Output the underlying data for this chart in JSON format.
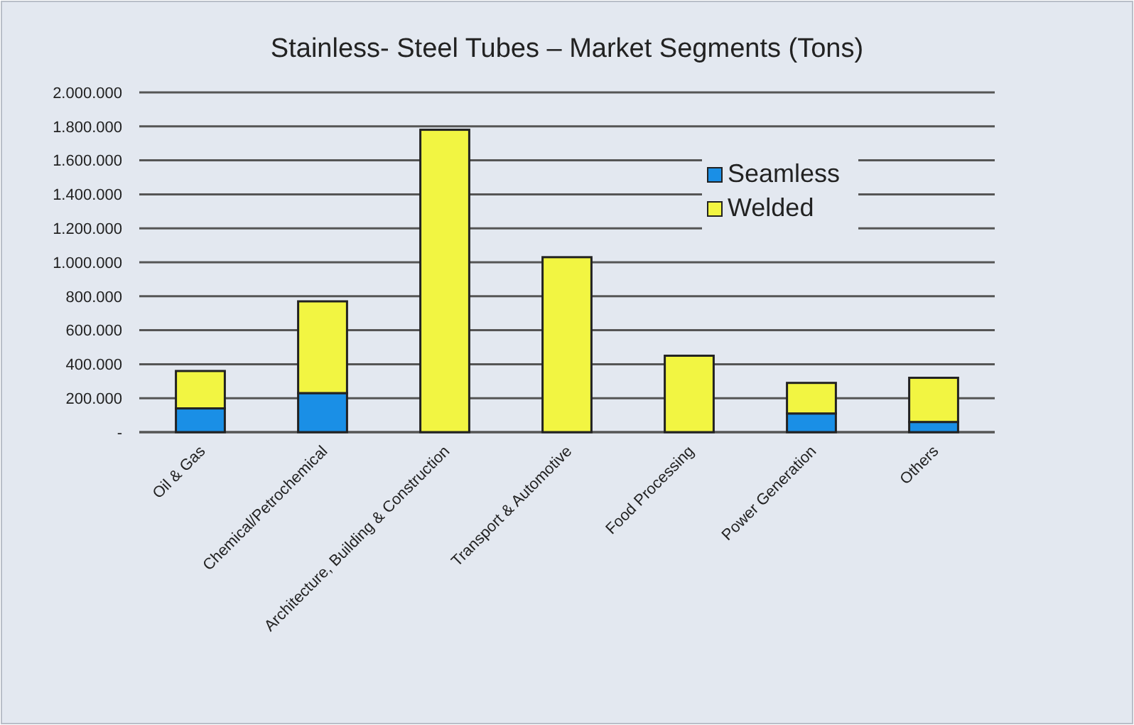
{
  "chart_data": {
    "type": "bar",
    "title": "Stainless- Steel Tubes – Market Segments (Tons)",
    "categories": [
      "Oil & Gas",
      "Chemical/Petrochemical",
      "Architecture, Building & Construction",
      "Transport & Automotive",
      "Food Processing",
      "Power Generation",
      "Others"
    ],
    "stacked": true,
    "series": [
      {
        "name": "Seamless",
        "color": "#1a8fe6",
        "values": [
          140000,
          230000,
          0,
          0,
          0,
          110000,
          60000
        ]
      },
      {
        "name": "Welded",
        "color": "#f2f542",
        "values": [
          220000,
          540000,
          1780000,
          1030000,
          450000,
          180000,
          260000
        ]
      }
    ],
    "ylim": [
      0,
      2000000
    ],
    "yticks": [
      {
        "value": 0,
        "label": "-"
      },
      {
        "value": 200000,
        "label": "200.000"
      },
      {
        "value": 400000,
        "label": "400.000"
      },
      {
        "value": 600000,
        "label": "600.000"
      },
      {
        "value": 800000,
        "label": "800.000"
      },
      {
        "value": 1000000,
        "label": "1.000.000"
      },
      {
        "value": 1200000,
        "label": "1.200.000"
      },
      {
        "value": 1400000,
        "label": "1.400.000"
      },
      {
        "value": 1600000,
        "label": "1.600.000"
      },
      {
        "value": 1800000,
        "label": "1.800.000"
      },
      {
        "value": 2000000,
        "label": "2.000.000"
      }
    ],
    "grid": "y",
    "legend": "top right"
  }
}
